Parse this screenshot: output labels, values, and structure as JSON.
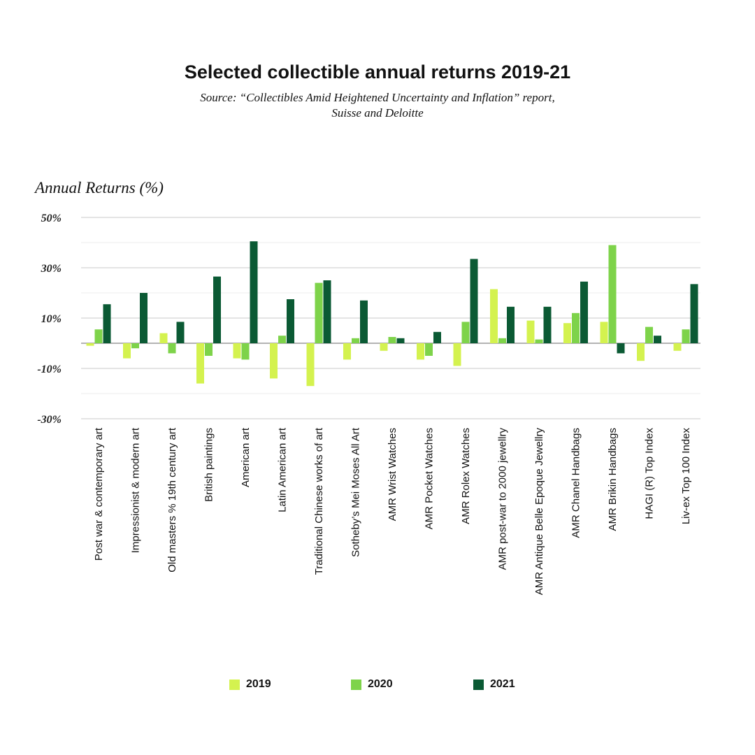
{
  "header": {
    "title": "Selected collectible annual returns 2019-21",
    "source_line1": "Source: “Collectibles Amid Heightened Uncertainty and Inflation” report,",
    "source_line2": "Suisse and Deloitte"
  },
  "colors": {
    "2019": "#d4f24f",
    "2020": "#7ed34a",
    "2021": "#0b5a34",
    "grid": "#c8c8c8",
    "zero_line": "#b4b4b4"
  },
  "chart_data": {
    "type": "bar",
    "title": "Selected collectible annual returns 2019-21",
    "ylabel": "Annual Returns (%)",
    "ylim": [
      -30,
      50
    ],
    "y_ticks": [
      {
        "value": 50,
        "label": "50%"
      },
      {
        "value": 30,
        "label": "30%"
      },
      {
        "value": 10,
        "label": "10%"
      },
      {
        "value": -10,
        "label": "-10%"
      },
      {
        "value": -30,
        "label": "-30%"
      }
    ],
    "grid": true,
    "legend_position": "bottom",
    "categories": [
      "Post war & contemporary art",
      "Impressionist & modern art",
      "Old masters % 19th century art",
      "British paintings",
      "American art",
      "Latin American art",
      "Traditional Chinese works of art",
      "Sotheby’s Mei Moses All Art",
      "AMR Wrist Watches",
      "AMR Pocket Watches",
      "AMR Rolex Watches",
      "AMR post-war to 2000 jewellry",
      "AMR Antique Belle Epoque Jewellry",
      "AMR Chanel Handbags",
      "AMR Brikin Handbags",
      "HAGI (R) Top Index",
      "Liv-ex Top 100 Index"
    ],
    "series": [
      {
        "name": "2019",
        "values": [
          -1,
          -6,
          4,
          -16,
          -6,
          -14,
          -17,
          -6.5,
          -3,
          -6.5,
          -9,
          21.5,
          9,
          8,
          8.5,
          -7,
          -3
        ]
      },
      {
        "name": "2020",
        "values": [
          5.5,
          -2,
          -4,
          -5,
          -6.5,
          3,
          24,
          2,
          2.5,
          -5,
          8.5,
          2,
          1.5,
          12,
          39,
          6.5,
          5.5
        ]
      },
      {
        "name": "2021",
        "values": [
          15.5,
          20,
          8.5,
          26.5,
          40.5,
          17.5,
          25,
          17,
          2,
          4.5,
          33.5,
          14.5,
          14.5,
          24.5,
          -4,
          3,
          23.5
        ]
      }
    ]
  }
}
